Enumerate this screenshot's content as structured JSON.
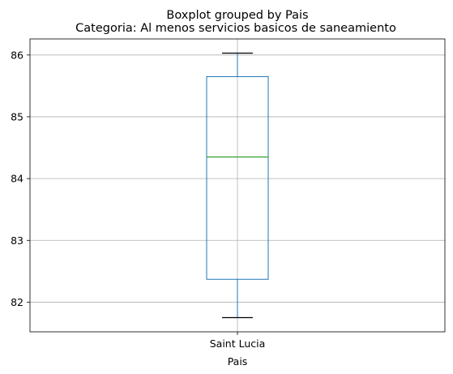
{
  "chart_data": {
    "type": "box",
    "suptitle": "Boxplot grouped by Pais",
    "title": "Categoria: Al menos servicios basicos de saneamiento",
    "xlabel": "Pais",
    "ylabel": "",
    "categories": [
      "Saint Lucia"
    ],
    "boxes": [
      {
        "category": "Saint Lucia",
        "whisker_low": 81.75,
        "q1": 82.37,
        "median": 84.35,
        "q3": 85.65,
        "whisker_high": 86.03
      }
    ],
    "ylim": [
      81.52,
      86.26
    ],
    "yticks": [
      "82",
      "83",
      "84",
      "85",
      "86"
    ],
    "grid": true,
    "colors": {
      "box": "#1f77b4",
      "median": "#2ca02c",
      "cap": "#000000",
      "grid": "#b0b0b0"
    }
  }
}
